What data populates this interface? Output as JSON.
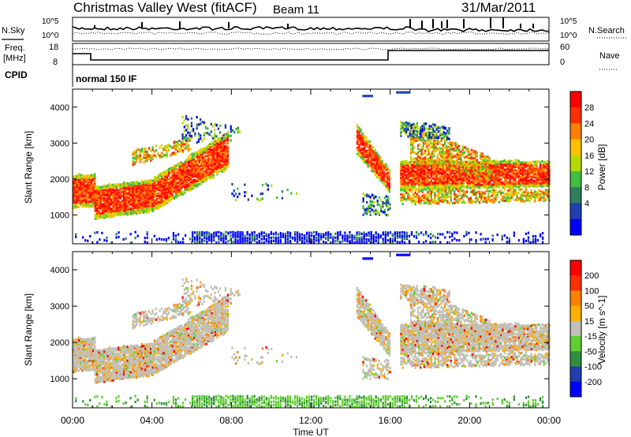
{
  "header": {
    "station": "Christmas Valley West (fitACF)",
    "beam": "Beam 11",
    "date": "31/Mar/2011"
  },
  "noise_panel": {
    "left_label": "N.Sky",
    "right_label": "N.Search",
    "left_ticks": [
      "10^5",
      "10^0"
    ],
    "right_ticks": [
      "10^5",
      "10^0"
    ]
  },
  "freq_panel": {
    "left_label_1": "Freq.",
    "left_label_2": "[MHz]",
    "right_label": "Nave",
    "left_ticks": [
      "18",
      "8"
    ],
    "right_ticks": [
      "60",
      "0"
    ]
  },
  "cpid": {
    "label": "CPID",
    "value": "normal 150 IF"
  },
  "chart_data": [
    {
      "type": "heatmap",
      "parameter": "Power",
      "ylabel": "Slant Range [km]",
      "xlabel": "Time UT",
      "ylim": [
        200,
        4500
      ],
      "yticks": [
        1000,
        2000,
        3000,
        4000
      ],
      "xticks": [
        "00:00",
        "04:00",
        "08:00",
        "12:00",
        "16:00",
        "20:00",
        "00:00"
      ],
      "colorbar": {
        "label": "Power [dB]",
        "ticks": [
          "4",
          "8",
          "12",
          "16",
          "20",
          "24",
          "28"
        ],
        "colors": [
          "#0000ff",
          "#1f3fb0",
          "#2f7f5f",
          "#3fbf3f",
          "#b5d900",
          "#ffc000",
          "#ff7f00",
          "#ff3000",
          "#ff0000"
        ]
      }
    },
    {
      "type": "heatmap",
      "parameter": "Velocity",
      "ylabel": "Slant Range [km]",
      "xlabel": "Time UT",
      "ylim": [
        200,
        4500
      ],
      "yticks": [
        1000,
        2000,
        3000,
        4000
      ],
      "xticks": [
        "00:00",
        "04:00",
        "08:00",
        "12:00",
        "16:00",
        "20:00",
        "00:00"
      ],
      "colorbar": {
        "label": "Velocity [m s^-1]",
        "ticks": [
          "200",
          "100",
          "50",
          "15",
          "-15",
          "-50",
          "-100",
          "-200"
        ],
        "colors": [
          "#0000ff",
          "#1f3fb0",
          "#2f8f3f",
          "#5fcf2f",
          "#c0c0b8",
          "#ffb000",
          "#ff7f00",
          "#ff3000",
          "#ff0000"
        ]
      }
    }
  ],
  "time_axis": {
    "label": "Time UT",
    "ticks": [
      "00:00",
      "04:00",
      "08:00",
      "12:00",
      "16:00",
      "20:00",
      "00:00"
    ]
  }
}
